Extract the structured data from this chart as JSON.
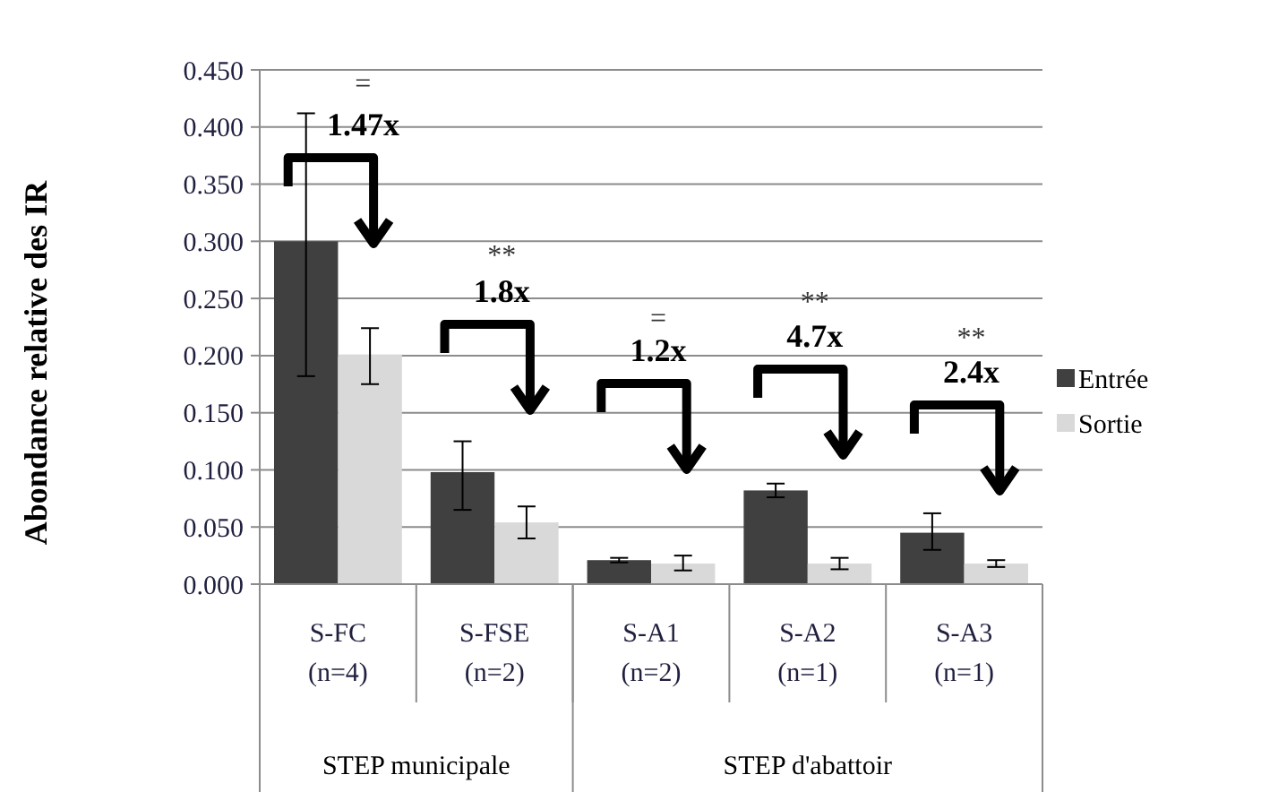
{
  "chart_data": {
    "type": "bar",
    "ylabel": "Abondance relative des IR",
    "categories": [
      "S-FC\n(n=4)",
      "S-FSE\n(n=2)",
      "S-A1\n(n=2)",
      "S-A2\n(n=1)",
      "S-A3\n(n=1)"
    ],
    "series": [
      {
        "name": "Entrée",
        "color": "#404040",
        "values": [
          0.3,
          0.098,
          0.021,
          0.082,
          0.045
        ],
        "errors": [
          [
            0.182,
            0.412
          ],
          [
            0.065,
            0.125
          ],
          [
            0.019,
            0.023
          ],
          [
            0.076,
            0.088
          ],
          [
            0.03,
            0.062
          ]
        ]
      },
      {
        "name": "Sortie",
        "color": "#d9d9d9",
        "values": [
          0.201,
          0.054,
          0.018,
          0.018,
          0.018
        ],
        "errors": [
          [
            0.175,
            0.224
          ],
          [
            0.04,
            0.068
          ],
          [
            0.012,
            0.025
          ],
          [
            0.013,
            0.023
          ],
          [
            0.015,
            0.021
          ]
        ]
      }
    ],
    "ylim": [
      0,
      0.45
    ],
    "yticks": [
      {
        "value": 0,
        "label": "0.000"
      },
      {
        "value": 0.05,
        "label": "0.050"
      },
      {
        "value": 0.1,
        "label": "0.100"
      },
      {
        "value": 0.15,
        "label": "0.150"
      },
      {
        "value": 0.2,
        "label": "0.200"
      },
      {
        "value": 0.25,
        "label": "0.250"
      },
      {
        "value": 0.3,
        "label": "0.300"
      },
      {
        "value": 0.35,
        "label": "0.350"
      },
      {
        "value": 0.4,
        "label": "0.400"
      },
      {
        "value": 0.45,
        "label": "0.450"
      }
    ],
    "grid": "y",
    "legend": "right",
    "annotations": [
      "=",
      "1.47x",
      "**",
      "1.8x",
      "=",
      "1.2x",
      "**",
      "4.7x",
      "**",
      "2.4x",
      "STEP municipale",
      "STEP d'abattoir"
    ]
  }
}
